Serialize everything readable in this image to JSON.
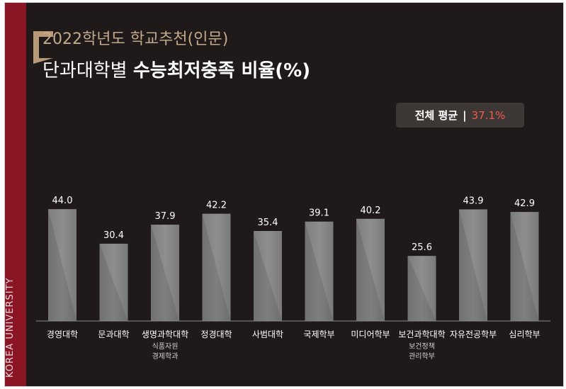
{
  "sidebar": {
    "brand": "KOREA UNIVERSITY"
  },
  "header": {
    "subtitle": "2022학년도 학교추천(인문)",
    "title_prefix": "단과대학별",
    "title_bold": "수능최저충족 비율",
    "title_suffix": "(%)"
  },
  "average": {
    "label": "전체 평균",
    "value": "37.1%"
  },
  "colors": {
    "accent": "#ef5b4b",
    "sidebar": "#8b1525",
    "bar": "#8a8a8a",
    "background": "#1f1a19",
    "gold": "#c1a98a"
  },
  "chart_data": {
    "type": "bar",
    "categories": [
      "경영대학",
      "문과대학",
      "생명과학대학",
      "정경대학",
      "사범대학",
      "국제학부",
      "미디어학부",
      "보건과학대학",
      "자유전공학부",
      "심리학부"
    ],
    "sublabels": [
      [],
      [],
      [
        "식품자원",
        "경제학과"
      ],
      [],
      [],
      [],
      [],
      [
        "보건정책",
        "관리학부"
      ],
      [],
      []
    ],
    "values": [
      44.0,
      30.4,
      37.9,
      42.2,
      35.4,
      39.1,
      40.2,
      25.6,
      43.9,
      42.9
    ],
    "value_labels": [
      "44.0",
      "30.4",
      "37.9",
      "42.2",
      "35.4",
      "39.1",
      "40.2",
      "25.6",
      "43.9",
      "42.9"
    ],
    "ylim": [
      0,
      50
    ]
  }
}
